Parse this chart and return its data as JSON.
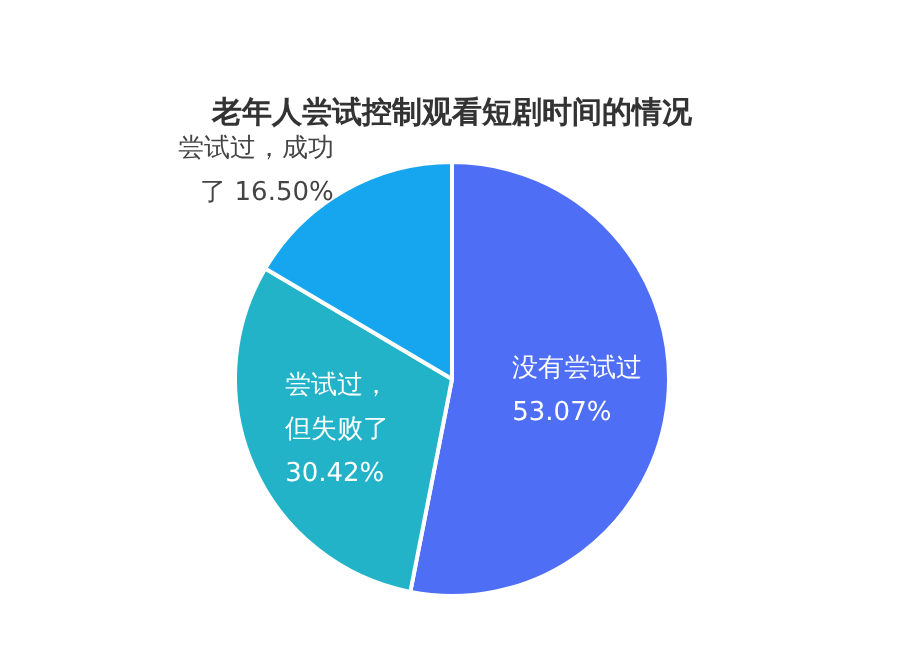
{
  "chart_data": {
    "type": "pie",
    "title": "老年人尝试控制观看短剧时间的情况",
    "categories": [
      "没有尝试过",
      "尝试过，但失败了",
      "尝试过，成功了"
    ],
    "values": [
      53.07,
      30.42,
      16.5
    ],
    "value_labels": [
      "53.07%",
      "30.42%",
      "16.50%"
    ],
    "colors": [
      "#4e6ef6",
      "#22b3c8",
      "#16a6ef"
    ]
  }
}
